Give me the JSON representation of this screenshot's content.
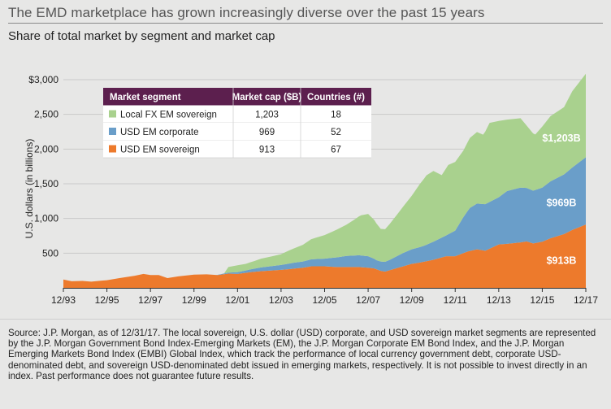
{
  "title": "The EMD marketplace has grown increasingly diverse over the past 15 years",
  "subtitle": "Share of total market by segment and market cap",
  "footnote": "Source: J.P. Morgan, as of 12/31/17. The local sovereign, U.S. dollar (USD) corporate, and USD sovereign market segments are represented by the J.P. Morgan Government Bond Index-Emerging Markets (EM), the J.P. Morgan Corporate EM Bond Index, and the J.P. Morgan Emerging Markets Bond Index (EMBI) Global Index, which track the performance of local currency government debt, corporate USD-denominated debt, and sovereign USD-denominated debt issued in emerging markets, respectively. It is not possible to invest directly in an index. Past performance does not guarantee future results.",
  "colors": {
    "local": "#a9d18e",
    "corp": "#6a9ec9",
    "sov": "#ed7a2c",
    "table_header": "#5c1f4e",
    "background": "#e7e7e6"
  },
  "table": {
    "headers": [
      "Market segment",
      "Market cap ($B)",
      "Countries (#)"
    ],
    "rows": [
      {
        "segment": "Local FX EM sovereign",
        "cap": "1,203",
        "countries": "18",
        "color_key": "local"
      },
      {
        "segment": "USD EM corporate",
        "cap": "969",
        "countries": "52",
        "color_key": "corp"
      },
      {
        "segment": "USD EM sovereign",
        "cap": "913",
        "countries": "67",
        "color_key": "sov"
      }
    ]
  },
  "chart_data": {
    "type": "area",
    "stacked": true,
    "ylabel": "U.S. dollars (in billions)",
    "ylim": [
      0,
      3000
    ],
    "yticks": [
      0,
      500,
      1000,
      1500,
      2000,
      2500,
      3000
    ],
    "ytick_labels": [
      "",
      "500",
      "1,000",
      "1,500",
      "2,000",
      "2,500",
      "$3,000"
    ],
    "xlim": [
      1993.92,
      2017.92
    ],
    "xticks": [
      1993.92,
      1995.92,
      1997.92,
      1999.92,
      2001.92,
      2003.92,
      2005.92,
      2007.92,
      2009.92,
      2011.92,
      2013.92,
      2015.92,
      2017.92
    ],
    "xtick_labels": [
      "12/93",
      "12/95",
      "12/97",
      "12/99",
      "12/01",
      "12/03",
      "12/05",
      "12/07",
      "12/09",
      "12/11",
      "12/13",
      "12/15",
      "12/17"
    ],
    "series": [
      {
        "name": "USD EM sovereign",
        "color_key": "sov",
        "points": [
          [
            1993.92,
            120
          ],
          [
            1994.3,
            95
          ],
          [
            1994.8,
            100
          ],
          [
            1995.2,
            90
          ],
          [
            1995.92,
            110
          ],
          [
            1996.5,
            140
          ],
          [
            1997.2,
            175
          ],
          [
            1997.6,
            200
          ],
          [
            1997.92,
            185
          ],
          [
            1998.3,
            185
          ],
          [
            1998.7,
            140
          ],
          [
            1999.2,
            165
          ],
          [
            1999.92,
            190
          ],
          [
            2000.5,
            195
          ],
          [
            2001.0,
            185
          ],
          [
            2001.5,
            205
          ],
          [
            2001.92,
            200
          ],
          [
            2002.5,
            225
          ],
          [
            2003.0,
            240
          ],
          [
            2003.92,
            260
          ],
          [
            2004.3,
            270
          ],
          [
            2004.92,
            290
          ],
          [
            2005.3,
            310
          ],
          [
            2005.92,
            310
          ],
          [
            2006.5,
            300
          ],
          [
            2006.92,
            300
          ],
          [
            2007.5,
            300
          ],
          [
            2007.92,
            290
          ],
          [
            2008.2,
            280
          ],
          [
            2008.5,
            245
          ],
          [
            2008.7,
            235
          ],
          [
            2008.92,
            255
          ],
          [
            2009.3,
            290
          ],
          [
            2009.92,
            345
          ],
          [
            2010.3,
            365
          ],
          [
            2010.92,
            405
          ],
          [
            2011.5,
            455
          ],
          [
            2011.92,
            455
          ],
          [
            2012.5,
            525
          ],
          [
            2012.92,
            555
          ],
          [
            2013.3,
            535
          ],
          [
            2013.92,
            625
          ],
          [
            2014.3,
            635
          ],
          [
            2014.92,
            655
          ],
          [
            2015.2,
            670
          ],
          [
            2015.5,
            640
          ],
          [
            2015.92,
            665
          ],
          [
            2016.3,
            715
          ],
          [
            2016.92,
            775
          ],
          [
            2017.3,
            835
          ],
          [
            2017.92,
            913
          ]
        ]
      },
      {
        "name": "USD EM corporate",
        "color_key": "corp",
        "points": [
          [
            1993.92,
            0
          ],
          [
            2000.92,
            0
          ],
          [
            2001.5,
            15
          ],
          [
            2001.92,
            25
          ],
          [
            2002.5,
            40
          ],
          [
            2003.0,
            55
          ],
          [
            2003.92,
            70
          ],
          [
            2004.5,
            85
          ],
          [
            2004.92,
            90
          ],
          [
            2005.5,
            105
          ],
          [
            2005.92,
            110
          ],
          [
            2006.5,
            140
          ],
          [
            2006.92,
            160
          ],
          [
            2007.5,
            170
          ],
          [
            2007.92,
            165
          ],
          [
            2008.3,
            130
          ],
          [
            2008.7,
            140
          ],
          [
            2008.92,
            150
          ],
          [
            2009.5,
            190
          ],
          [
            2009.92,
            210
          ],
          [
            2010.5,
            230
          ],
          [
            2010.92,
            260
          ],
          [
            2011.5,
            300
          ],
          [
            2011.92,
            370
          ],
          [
            2012.3,
            520
          ],
          [
            2012.6,
            620
          ],
          [
            2012.92,
            660
          ],
          [
            2013.3,
            670
          ],
          [
            2013.92,
            680
          ],
          [
            2014.3,
            760
          ],
          [
            2014.92,
            790
          ],
          [
            2015.2,
            770
          ],
          [
            2015.5,
            760
          ],
          [
            2015.92,
            780
          ],
          [
            2016.3,
            820
          ],
          [
            2016.92,
            860
          ],
          [
            2017.3,
            900
          ],
          [
            2017.92,
            969
          ]
        ]
      },
      {
        "name": "Local FX EM sovereign",
        "color_key": "local",
        "points": [
          [
            1993.92,
            0
          ],
          [
            2001.3,
            0
          ],
          [
            2001.5,
            80
          ],
          [
            2001.92,
            100
          ],
          [
            2002.3,
            95
          ],
          [
            2002.7,
            110
          ],
          [
            2003.0,
            125
          ],
          [
            2003.5,
            140
          ],
          [
            2003.92,
            155
          ],
          [
            2004.3,
            190
          ],
          [
            2004.92,
            240
          ],
          [
            2005.3,
            290
          ],
          [
            2005.92,
            340
          ],
          [
            2006.3,
            380
          ],
          [
            2006.92,
            450
          ],
          [
            2007.3,
            520
          ],
          [
            2007.6,
            580
          ],
          [
            2007.92,
            610
          ],
          [
            2008.2,
            560
          ],
          [
            2008.5,
            470
          ],
          [
            2008.7,
            470
          ],
          [
            2008.92,
            520
          ],
          [
            2009.3,
            610
          ],
          [
            2009.92,
            770
          ],
          [
            2010.3,
            910
          ],
          [
            2010.6,
            1000
          ],
          [
            2010.92,
            1020
          ],
          [
            2011.3,
            900
          ],
          [
            2011.6,
            1000
          ],
          [
            2011.92,
            990
          ],
          [
            2012.3,
            960
          ],
          [
            2012.6,
            1010
          ],
          [
            2012.92,
            1030
          ],
          [
            2013.2,
            1000
          ],
          [
            2013.5,
            1140
          ],
          [
            2013.92,
            1100
          ],
          [
            2014.3,
            1030
          ],
          [
            2014.92,
            1000
          ],
          [
            2015.2,
            900
          ],
          [
            2015.6,
            800
          ],
          [
            2015.92,
            880
          ],
          [
            2016.3,
            940
          ],
          [
            2016.92,
            970
          ],
          [
            2017.3,
            1100
          ],
          [
            2017.92,
            1203
          ]
        ]
      }
    ],
    "end_labels": [
      "$1,203B",
      "$969B",
      "$913B"
    ],
    "legend_placement": "top-left table"
  }
}
